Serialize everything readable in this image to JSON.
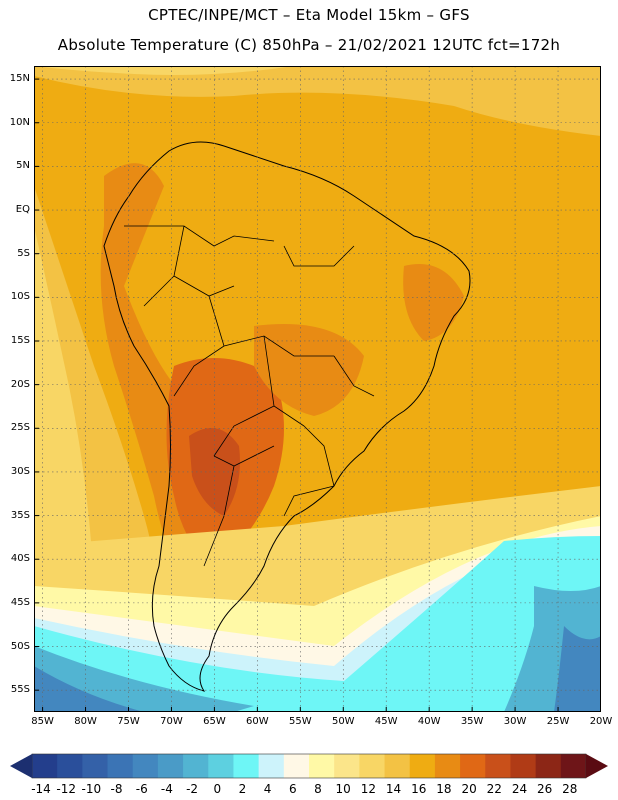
{
  "header": {
    "line1": "CPTEC/INPE/MCT –  Eta Model 15km – GFS",
    "line2": "Absolute Temperature (C) 850hPa – 21/02/2021 12UTC fct=172h"
  },
  "map": {
    "lat_labels": [
      "15N",
      "10N",
      "5N",
      "EQ",
      "5S",
      "10S",
      "15S",
      "20S",
      "25S",
      "30S",
      "35S",
      "40S",
      "45S",
      "50S",
      "55S"
    ],
    "lon_labels": [
      "85W",
      "80W",
      "75W",
      "70W",
      "65W",
      "60W",
      "55W",
      "50W",
      "45W",
      "40W",
      "35W",
      "30W",
      "25W",
      "20W"
    ],
    "lat_values": [
      15,
      10,
      5,
      0,
      -5,
      -10,
      -15,
      -20,
      -25,
      -30,
      -35,
      -40,
      -45,
      -50,
      -55
    ],
    "lon_values": [
      -85,
      -80,
      -75,
      -70,
      -65,
      -60,
      -55,
      -50,
      -45,
      -40,
      -35,
      -30,
      -25,
      -20
    ],
    "lat_range": [
      -57.5,
      16.5
    ],
    "lon_range": [
      -86.0,
      -20.0
    ]
  },
  "colorbar": {
    "labels": [
      "-14",
      "-12",
      "-10",
      "-8",
      "-6",
      "-4",
      "-2",
      "0",
      "2",
      "4",
      "6",
      "8",
      "10",
      "12",
      "14",
      "16",
      "18",
      "20",
      "22",
      "24",
      "26",
      "28"
    ],
    "colors": [
      "#233e8c",
      "#2a4f9b",
      "#3461a8",
      "#3b74b5",
      "#4387bf",
      "#4a9bc7",
      "#52b4d2",
      "#5dd0e0",
      "#6ef6f6",
      "#cdf3fb",
      "#fff8e6",
      "#fff9a6",
      "#fbe58a",
      "#f8d665",
      "#f3c244",
      "#efac12",
      "#e88b14",
      "#e06815",
      "#c9501a",
      "#b03b16",
      "#8c2616",
      "#6e1518"
    ],
    "under_color": "#1c2f70",
    "over_color": "#5a0b12"
  }
}
